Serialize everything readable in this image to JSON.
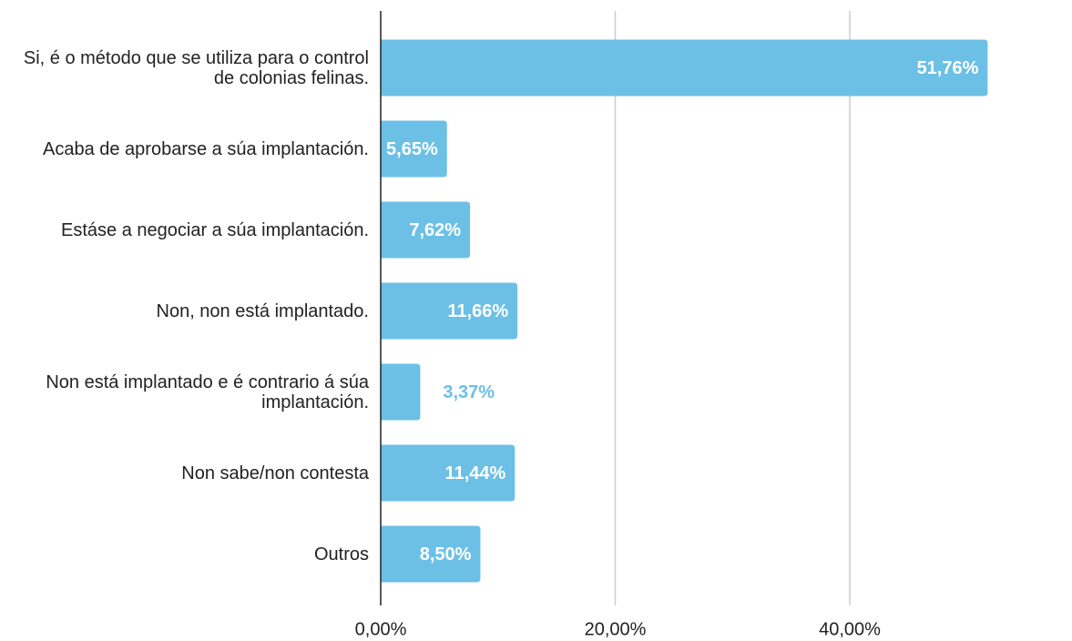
{
  "chart_data": {
    "type": "bar",
    "orientation": "horizontal",
    "categories": [
      "Si, é o método que se utiliza para o control de colonias felinas.",
      "Acaba de aprobarse a súa implantación.",
      "Estáse a negociar a súa implantación.",
      "Non, non está implantado.",
      "Non está implantado e é contrario á súa implantación.",
      "Non sabe/non contesta",
      "Outros"
    ],
    "values": [
      51.76,
      5.65,
      7.62,
      11.66,
      3.37,
      11.44,
      8.5
    ],
    "value_labels": [
      "51,76%",
      "5,65%",
      "7,62%",
      "11,66%",
      "3,37%",
      "11,44%",
      "8,50%"
    ],
    "color": "#6cc0e5",
    "xlim": [
      0,
      58
    ],
    "xticks": [
      {
        "value": 0,
        "label": "0,00%"
      },
      {
        "value": 20,
        "label": "20,00%"
      },
      {
        "value": 40,
        "label": "40,00%"
      }
    ],
    "grid": true
  }
}
